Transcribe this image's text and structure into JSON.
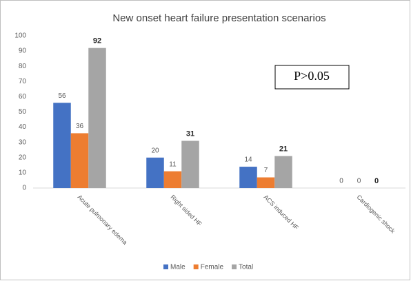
{
  "chart_data": {
    "type": "bar",
    "title": "New onset heart failure presentation scenarios",
    "categories": [
      "Acute pulmonary edema",
      "Right sided HF",
      "ACS induced HF",
      "Cardiogenic shock"
    ],
    "series": [
      {
        "name": "Male",
        "color": "#4472c4",
        "values": [
          56,
          20,
          14,
          0
        ]
      },
      {
        "name": "Female",
        "color": "#ed7d31",
        "values": [
          36,
          11,
          7,
          0
        ]
      },
      {
        "name": "Total",
        "color": "#a5a5a5",
        "values": [
          92,
          31,
          21,
          0
        ]
      }
    ],
    "ylim": [
      0,
      100
    ],
    "yticks": [
      0,
      10,
      20,
      30,
      40,
      50,
      60,
      70,
      80,
      90,
      100
    ],
    "grid": false,
    "legend": "bottom",
    "annotation": "P>0.05"
  }
}
